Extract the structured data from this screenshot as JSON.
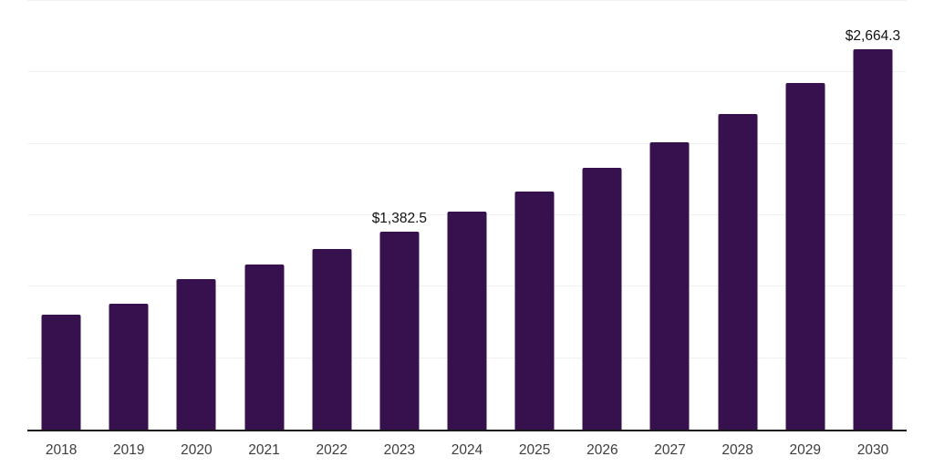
{
  "chart_data": {
    "type": "bar",
    "title": "",
    "xlabel": "",
    "ylabel": "",
    "categories": [
      "2018",
      "2019",
      "2020",
      "2021",
      "2022",
      "2023",
      "2024",
      "2025",
      "2026",
      "2027",
      "2028",
      "2029",
      "2030"
    ],
    "values": [
      807,
      883,
      1053,
      1155,
      1264,
      1382.5,
      1526,
      1666,
      1832,
      2010,
      2208,
      2425,
      2664.3
    ],
    "data_labels": [
      "",
      "",
      "",
      "",
      "",
      "$1,382.5",
      "",
      "",
      "",
      "",
      "",
      "",
      "$2,664.3"
    ],
    "ylim": [
      0,
      3000
    ],
    "gridline_step": 500,
    "grid": true,
    "legend": "none",
    "y_tick_labels_visible": false,
    "colors": {
      "bar": "#36114E",
      "grid": "#f1f1f1",
      "axis_line": "#1a1a1a",
      "tick_label": "#3d3d3d",
      "data_label": "#111111",
      "background": "#ffffff"
    }
  }
}
